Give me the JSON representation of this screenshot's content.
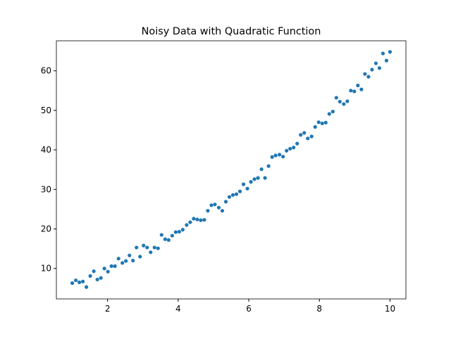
{
  "chart_data": {
    "type": "scatter",
    "title": "Noisy Data with Quadratic Function",
    "x": [
      1.0,
      1.1,
      1.2,
      1.3,
      1.4,
      1.51,
      1.61,
      1.71,
      1.81,
      1.91,
      2.01,
      2.11,
      2.21,
      2.31,
      2.42,
      2.52,
      2.62,
      2.72,
      2.82,
      2.92,
      3.02,
      3.12,
      3.22,
      3.33,
      3.43,
      3.53,
      3.63,
      3.73,
      3.83,
      3.93,
      4.03,
      4.13,
      4.24,
      4.34,
      4.44,
      4.54,
      4.64,
      4.74,
      4.84,
      4.94,
      5.04,
      5.15,
      5.25,
      5.35,
      5.45,
      5.55,
      5.65,
      5.75,
      5.85,
      5.96,
      6.06,
      6.16,
      6.26,
      6.36,
      6.46,
      6.56,
      6.66,
      6.76,
      6.87,
      6.97,
      7.07,
      7.17,
      7.27,
      7.37,
      7.47,
      7.57,
      7.67,
      7.78,
      7.88,
      7.98,
      8.08,
      8.18,
      8.28,
      8.38,
      8.48,
      8.58,
      8.69,
      8.79,
      8.89,
      8.99,
      9.09,
      9.19,
      9.29,
      9.39,
      9.49,
      9.6,
      9.7,
      9.8,
      9.9,
      10.0
    ],
    "values": [
      6.3,
      7.0,
      6.5,
      6.7,
      5.3,
      8.1,
      9.3,
      7.2,
      7.6,
      10.0,
      9.2,
      10.6,
      10.6,
      12.5,
      11.4,
      11.9,
      13.3,
      12.0,
      15.3,
      13.0,
      15.8,
      15.3,
      14.1,
      15.3,
      15.1,
      18.5,
      17.4,
      17.2,
      18.3,
      19.2,
      19.3,
      19.8,
      21.0,
      21.7,
      22.6,
      22.4,
      22.2,
      22.3,
      24.6,
      26.0,
      26.2,
      25.4,
      24.6,
      26.9,
      28.1,
      28.6,
      28.8,
      29.5,
      31.3,
      30.2,
      31.9,
      32.6,
      32.9,
      35.1,
      32.9,
      35.9,
      38.2,
      38.6,
      38.8,
      38.3,
      39.8,
      40.3,
      40.6,
      41.6,
      43.8,
      44.3,
      42.9,
      43.4,
      45.8,
      47.0,
      46.7,
      46.9,
      49.1,
      49.7,
      53.2,
      52.2,
      51.6,
      52.3,
      55.0,
      54.8,
      56.3,
      55.3,
      59.2,
      58.5,
      60.3,
      61.9,
      60.7,
      64.4,
      62.6,
      64.8
    ],
    "color": "#1f77b4",
    "xlim": [
      0.55,
      10.45
    ],
    "xticks": [
      2,
      4,
      6,
      8,
      10
    ],
    "ylim": [
      2.3,
      67.6
    ],
    "yticks": [
      10,
      20,
      30,
      40,
      50,
      60
    ]
  }
}
